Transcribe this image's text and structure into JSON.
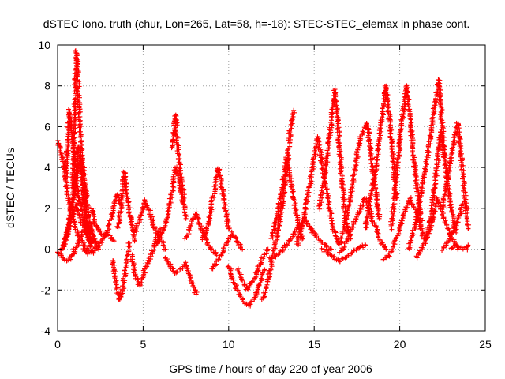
{
  "chart_data": {
    "type": "scatter",
    "title": "dSTEC Iono. truth (chur, Lon=265, Lat=58, h=-18): STEC-STEC_elemax in phase cont.",
    "xlabel": "GPS time / hours of day 220 of year 2006",
    "ylabel": "dSTEC  / TECUs",
    "xlim": [
      0,
      25
    ],
    "ylim": [
      -4,
      10
    ],
    "xticks": [
      0,
      5,
      10,
      15,
      20,
      25
    ],
    "yticks": [
      -4,
      -2,
      0,
      2,
      4,
      6,
      8,
      10
    ],
    "xtick_labels": [
      "0",
      "5",
      "10",
      "15",
      "20",
      "25"
    ],
    "ytick_labels": [
      "-4",
      "-2",
      "0",
      "2",
      "4",
      "6",
      "8",
      "10"
    ],
    "grid": true,
    "marker": "+",
    "marker_color": "#ff0000",
    "series": [
      {
        "x": [
          0.0,
          0.2,
          0.4,
          0.6,
          0.8,
          1.0,
          1.2,
          1.5,
          1.8,
          2.1
        ],
        "y": [
          5.3,
          4.8,
          3.8,
          2.7,
          1.8,
          1.2,
          0.7,
          0.3,
          0.0,
          -0.2
        ]
      },
      {
        "x": [
          0.2,
          0.4,
          0.6,
          0.8,
          1.0,
          1.2,
          1.5,
          1.8,
          2.2
        ],
        "y": [
          -0.1,
          0.3,
          0.8,
          1.7,
          3.2,
          5.0,
          4.0,
          1.5,
          0.3
        ]
      },
      {
        "x": [
          0.3,
          0.5,
          0.7,
          0.9,
          1.1,
          1.3,
          1.5,
          1.7,
          2.0
        ],
        "y": [
          0.2,
          0.6,
          1.5,
          2.5,
          3.5,
          4.3,
          2.5,
          1.0,
          0.1
        ]
      },
      {
        "x": [
          0.3,
          0.5,
          0.7,
          0.9,
          1.1,
          1.3,
          1.6,
          2.0
        ],
        "y": [
          0.0,
          0.6,
          1.2,
          1.8,
          2.2,
          1.6,
          0.8,
          0.1
        ]
      },
      {
        "x": [
          0.5,
          0.7,
          0.9,
          1.1,
          1.4,
          1.7,
          2.0
        ],
        "y": [
          3.5,
          6.8,
          5.2,
          3.2,
          1.8,
          0.9,
          0.3
        ]
      },
      {
        "x": [
          0.9,
          1.0,
          1.1,
          1.2,
          1.3,
          1.45,
          1.6,
          1.8
        ],
        "y": [
          3.0,
          7.0,
          9.7,
          8.2,
          6.0,
          4.0,
          2.2,
          0.8
        ]
      },
      {
        "x": [
          0.0,
          0.3,
          0.6,
          0.9,
          1.2,
          1.5,
          1.8,
          2.1,
          2.4
        ],
        "y": [
          -0.1,
          -0.4,
          -0.6,
          -0.2,
          0.3,
          0.9,
          1.2,
          0.6,
          0.0
        ]
      },
      {
        "x": [
          1.5,
          1.8,
          2.1,
          2.5,
          2.9,
          3.3
        ],
        "y": [
          0.0,
          -0.2,
          -0.1,
          0.3,
          0.8,
          0.4
        ]
      },
      {
        "x": [
          2.0,
          2.2,
          2.5,
          2.8,
          3.0,
          3.2,
          3.5,
          3.7
        ],
        "y": [
          2.0,
          1.2,
          0.8,
          0.6,
          1.2,
          1.8,
          2.7,
          2.2
        ]
      },
      {
        "x": [
          3.2,
          3.4,
          3.6,
          3.8,
          4.0,
          4.2
        ],
        "y": [
          -0.5,
          -1.5,
          -2.5,
          -2.0,
          -0.8,
          0.3
        ]
      },
      {
        "x": [
          3.5,
          3.7,
          3.9,
          4.1,
          4.3,
          4.5
        ],
        "y": [
          1.0,
          2.0,
          3.8,
          2.5,
          1.2,
          0.4
        ]
      },
      {
        "x": [
          4.3,
          4.5,
          4.8,
          5.1,
          5.4,
          5.7,
          6.0
        ],
        "y": [
          -0.3,
          -1.2,
          -1.8,
          -1.0,
          -0.4,
          0.3,
          1.0
        ]
      },
      {
        "x": [
          4.5,
          4.8,
          5.1,
          5.4,
          5.7,
          6.0,
          6.3
        ],
        "y": [
          0.8,
          1.5,
          2.4,
          1.8,
          0.9,
          0.5,
          0.0
        ]
      },
      {
        "x": [
          5.8,
          6.1,
          6.4,
          6.7,
          6.9,
          7.2,
          7.5
        ],
        "y": [
          0.3,
          0.8,
          1.5,
          2.8,
          4.0,
          3.0,
          1.5
        ]
      },
      {
        "x": [
          6.7,
          6.8,
          6.9,
          7.0,
          7.2,
          7.4
        ],
        "y": [
          5.0,
          6.0,
          6.6,
          5.2,
          3.5,
          2.5
        ]
      },
      {
        "x": [
          6.3,
          6.6,
          6.9,
          7.2,
          7.5,
          7.8,
          8.1
        ],
        "y": [
          -0.4,
          -0.8,
          -1.2,
          -1.0,
          -0.7,
          -1.5,
          -2.2
        ]
      },
      {
        "x": [
          7.5,
          7.8,
          8.1,
          8.4,
          8.7,
          9.0,
          9.3
        ],
        "y": [
          0.5,
          1.2,
          1.8,
          1.0,
          0.4,
          0.0,
          -0.3
        ]
      },
      {
        "x": [
          8.5,
          8.8,
          9.1,
          9.4,
          9.7,
          10.0
        ],
        "y": [
          0.5,
          1.2,
          2.6,
          4.0,
          2.5,
          1.0
        ]
      },
      {
        "x": [
          9.0,
          9.3,
          9.6,
          9.9,
          10.2,
          10.5,
          10.8
        ],
        "y": [
          -1.0,
          -0.6,
          -0.2,
          0.3,
          0.8,
          0.4,
          0.0
        ]
      },
      {
        "x": [
          10.0,
          10.3,
          10.6,
          10.9,
          11.2,
          11.5,
          11.8,
          12.1
        ],
        "y": [
          -0.8,
          -1.6,
          -2.2,
          -2.6,
          -2.8,
          -2.4,
          -1.8,
          -1.0
        ]
      },
      {
        "x": [
          10.5,
          10.8,
          11.1,
          11.4,
          11.7,
          12.0,
          12.3
        ],
        "y": [
          -1.0,
          -1.5,
          -2.0,
          -1.6,
          -1.0,
          -0.4,
          0.0
        ]
      },
      {
        "x": [
          12.0,
          12.3,
          12.6,
          12.9,
          13.2,
          13.4,
          13.6,
          13.8
        ],
        "y": [
          -2.5,
          -1.5,
          -0.3,
          1.0,
          2.5,
          4.0,
          5.8,
          6.8
        ]
      },
      {
        "x": [
          12.5,
          12.8,
          13.1,
          13.4,
          13.7,
          14.0,
          14.3
        ],
        "y": [
          0.5,
          1.5,
          2.8,
          4.5,
          3.0,
          1.5,
          0.5
        ]
      },
      {
        "x": [
          12.4,
          12.8,
          13.2,
          13.6,
          14.0,
          14.4,
          14.8,
          15.2,
          15.6,
          16.0
        ],
        "y": [
          -0.5,
          -0.3,
          0.0,
          0.5,
          1.0,
          1.5,
          1.0,
          0.5,
          0.2,
          0.0
        ]
      },
      {
        "x": [
          14.0,
          14.4,
          14.8,
          15.2,
          15.5,
          15.8,
          16.1,
          16.4
        ],
        "y": [
          0.2,
          1.5,
          3.5,
          5.5,
          4.0,
          2.5,
          1.0,
          0.3
        ]
      },
      {
        "x": [
          15.3,
          15.6,
          15.9,
          16.2,
          16.4,
          16.6,
          16.8,
          17.1
        ],
        "y": [
          2.0,
          3.5,
          5.5,
          7.8,
          6.0,
          3.5,
          1.5,
          0.5
        ]
      },
      {
        "x": [
          15.5,
          16.0,
          16.5,
          17.0,
          17.5,
          18.0
        ],
        "y": [
          0.0,
          -0.3,
          -0.6,
          -0.3,
          0.0,
          0.2
        ]
      },
      {
        "x": [
          16.5,
          16.9,
          17.3,
          17.7,
          18.1,
          18.4,
          18.8
        ],
        "y": [
          0.2,
          1.5,
          3.5,
          5.5,
          6.2,
          4.0,
          1.5
        ]
      },
      {
        "x": [
          16.5,
          16.9,
          17.3,
          17.7,
          18.0,
          18.4,
          18.8,
          19.2
        ],
        "y": [
          -0.2,
          0.4,
          1.2,
          2.0,
          2.5,
          1.5,
          0.5,
          0.0
        ]
      },
      {
        "x": [
          18.0,
          18.3,
          18.6,
          18.9,
          19.2,
          19.5,
          19.8
        ],
        "y": [
          1.0,
          2.5,
          4.0,
          6.0,
          8.0,
          5.5,
          2.5
        ]
      },
      {
        "x": [
          19.0,
          19.4,
          19.8,
          20.2,
          20.6,
          21.0,
          21.4
        ],
        "y": [
          -0.5,
          -0.3,
          0.5,
          1.5,
          2.5,
          1.8,
          0.5
        ]
      },
      {
        "x": [
          19.5,
          19.8,
          20.1,
          20.4,
          20.7,
          21.0,
          21.3
        ],
        "y": [
          1.0,
          3.5,
          6.0,
          8.0,
          5.5,
          3.0,
          1.0
        ]
      },
      {
        "x": [
          20.5,
          20.8,
          21.1,
          21.4,
          21.7,
          22.0,
          22.3,
          22.6
        ],
        "y": [
          0.0,
          0.8,
          2.0,
          3.5,
          5.0,
          6.8,
          8.3,
          4.5
        ]
      },
      {
        "x": [
          21.0,
          21.4,
          21.8,
          22.2,
          22.6,
          23.0,
          23.4
        ],
        "y": [
          -0.4,
          0.2,
          1.0,
          2.5,
          1.5,
          0.6,
          0.0
        ]
      },
      {
        "x": [
          21.5,
          21.8,
          22.1,
          22.4,
          22.7,
          23.0,
          23.3
        ],
        "y": [
          0.5,
          1.5,
          3.5,
          5.8,
          4.0,
          2.0,
          0.8
        ]
      },
      {
        "x": [
          22.5,
          22.8,
          23.1,
          23.4,
          23.7,
          24.0
        ],
        "y": [
          2.0,
          3.5,
          5.0,
          6.2,
          3.5,
          1.0
        ]
      },
      {
        "x": [
          22.5,
          22.9,
          23.3,
          23.7,
          24.0
        ],
        "y": [
          0.0,
          0.5,
          1.2,
          2.2,
          2.0
        ]
      },
      {
        "x": [
          23.0,
          23.3,
          23.6,
          23.9,
          24.0
        ],
        "y": [
          0.0,
          0.2,
          0.1,
          0.0,
          0.2
        ]
      }
    ]
  }
}
